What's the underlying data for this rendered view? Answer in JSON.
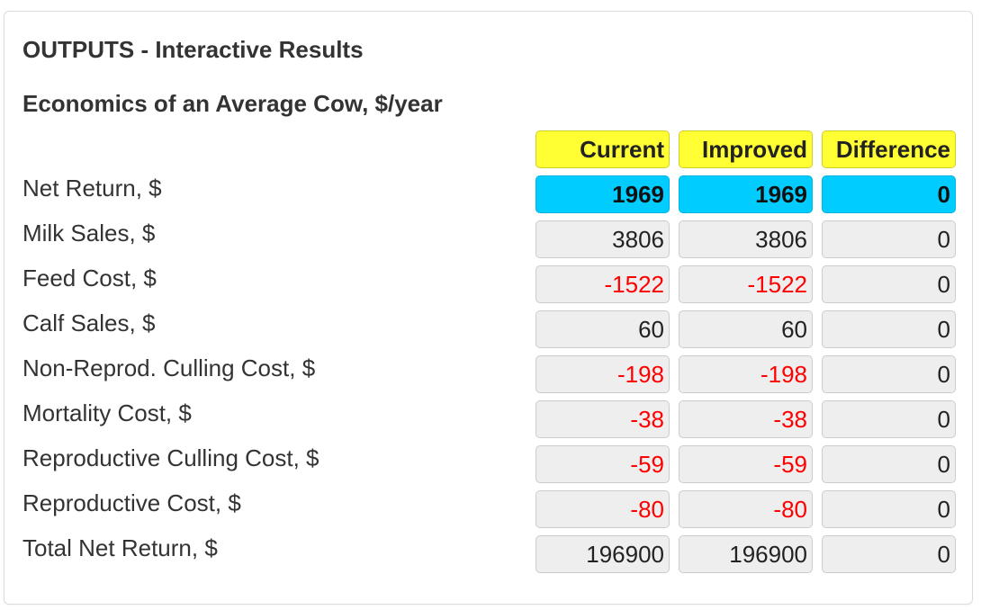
{
  "panel": {
    "title": "OUTPUTS - Interactive Results"
  },
  "section": {
    "title": "Economics of an Average Cow, $/year"
  },
  "columns": {
    "current": "Current",
    "improved": "Improved",
    "difference": "Difference"
  },
  "colors": {
    "header_bg": "#ffff33",
    "highlight_bg": "#00ccff",
    "cell_bg": "#eeeeee",
    "negative_text": "#ff0000"
  },
  "rows": [
    {
      "label": "Net Return, $",
      "current": "1969",
      "improved": "1969",
      "difference": "0"
    },
    {
      "label": "Milk Sales, $",
      "current": "3806",
      "improved": "3806",
      "difference": "0"
    },
    {
      "label": "Feed Cost, $",
      "current": "-1522",
      "improved": "-1522",
      "difference": "0"
    },
    {
      "label": "Calf Sales, $",
      "current": "60",
      "improved": "60",
      "difference": "0"
    },
    {
      "label": "Non-Reprod. Culling Cost, $",
      "current": "-198",
      "improved": "-198",
      "difference": "0"
    },
    {
      "label": "Mortality Cost, $",
      "current": "-38",
      "improved": "-38",
      "difference": "0"
    },
    {
      "label": "Reproductive Culling Cost, $",
      "current": "-59",
      "improved": "-59",
      "difference": "0"
    },
    {
      "label": "Reproductive Cost, $",
      "current": "-80",
      "improved": "-80",
      "difference": "0"
    },
    {
      "label": "Total Net Return, $",
      "current": "196900",
      "improved": "196900",
      "difference": "0"
    }
  ]
}
